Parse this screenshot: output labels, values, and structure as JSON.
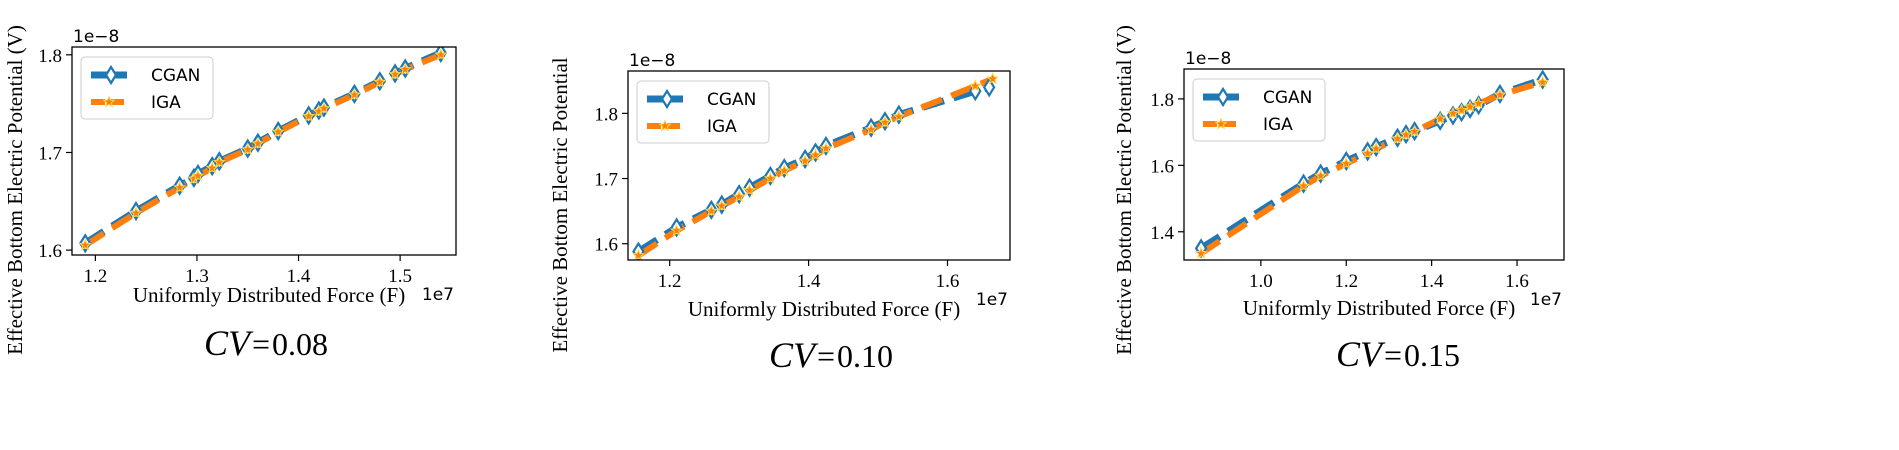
{
  "colors": {
    "cgan": "#1f77b4",
    "iga": "#ff7f0e",
    "iga_marker_edge": "#ffd84a"
  },
  "chart_data": [
    {
      "type": "line",
      "caption": {
        "symbol": "CV",
        "equals": "=",
        "value": "0.08"
      },
      "xlabel": "Uniformly Distributed Force (F)",
      "ylabel": "Effective Bottom Electric Potential (V)",
      "x_offset_label": "1e7",
      "y_offset_label": "1e−8",
      "xlim": [
        1.177,
        1.555
      ],
      "ylim": [
        1.595,
        1.808
      ],
      "xticks": [
        1.2,
        1.3,
        1.4,
        1.5
      ],
      "xtick_labels": [
        "1.2",
        "1.3",
        "1.4",
        "1.5"
      ],
      "yticks": [
        1.6,
        1.7,
        1.8
      ],
      "ytick_labels": [
        "1.6",
        "1.7",
        "1.8"
      ],
      "legend": {
        "position": "upper-left",
        "entries": [
          "CGAN",
          "IGA"
        ]
      },
      "series": [
        {
          "name": "CGAN",
          "marker": "diamond",
          "x": [
            1.19,
            1.24,
            1.283,
            1.297,
            1.301,
            1.315,
            1.322,
            1.35,
            1.36,
            1.38,
            1.41,
            1.42,
            1.425,
            1.455,
            1.48,
            1.495,
            1.505,
            1.54
          ],
          "y": [
            1.607,
            1.64,
            1.666,
            1.674,
            1.678,
            1.686,
            1.691,
            1.704,
            1.71,
            1.722,
            1.738,
            1.743,
            1.746,
            1.76,
            1.773,
            1.781,
            1.786,
            1.802
          ]
        },
        {
          "name": "IGA",
          "marker": "star",
          "x": [
            1.19,
            1.24,
            1.283,
            1.297,
            1.301,
            1.315,
            1.322,
            1.35,
            1.36,
            1.38,
            1.41,
            1.42,
            1.425,
            1.455,
            1.48,
            1.495,
            1.505,
            1.54
          ],
          "y": [
            1.605,
            1.638,
            1.664,
            1.673,
            1.676,
            1.684,
            1.69,
            1.703,
            1.709,
            1.721,
            1.737,
            1.742,
            1.745,
            1.759,
            1.772,
            1.78,
            1.785,
            1.8
          ]
        }
      ]
    },
    {
      "type": "line",
      "caption": {
        "symbol": "CV",
        "equals": "=",
        "value": "0.10"
      },
      "xlabel": "Uniformly Distributed Force (F)",
      "ylabel": "Effective Bottom Electric Potential",
      "x_offset_label": "1e7",
      "y_offset_label": "1e−8",
      "xlim": [
        1.14,
        1.69
      ],
      "ylim": [
        1.575,
        1.865
      ],
      "xticks": [
        1.2,
        1.4,
        1.6
      ],
      "xtick_labels": [
        "1.2",
        "1.4",
        "1.6"
      ],
      "yticks": [
        1.6,
        1.7,
        1.8
      ],
      "ytick_labels": [
        "1.6",
        "1.7",
        "1.8"
      ],
      "legend": {
        "position": "upper-left",
        "entries": [
          "CGAN",
          "IGA"
        ]
      },
      "series": [
        {
          "name": "CGAN",
          "marker": "diamond",
          "x": [
            1.155,
            1.21,
            1.26,
            1.275,
            1.3,
            1.315,
            1.345,
            1.365,
            1.395,
            1.41,
            1.425,
            1.49,
            1.51,
            1.53,
            1.64,
            1.66
          ],
          "y": [
            1.588,
            1.625,
            1.652,
            1.66,
            1.676,
            1.686,
            1.704,
            1.716,
            1.73,
            1.74,
            1.75,
            1.778,
            1.788,
            1.798,
            1.834,
            1.84
          ]
        },
        {
          "name": "IGA",
          "marker": "star",
          "x": [
            1.155,
            1.21,
            1.26,
            1.275,
            1.3,
            1.315,
            1.345,
            1.365,
            1.395,
            1.41,
            1.425,
            1.49,
            1.51,
            1.53,
            1.64,
            1.665
          ],
          "y": [
            1.582,
            1.62,
            1.65,
            1.658,
            1.672,
            1.682,
            1.7,
            1.712,
            1.727,
            1.736,
            1.746,
            1.775,
            1.786,
            1.795,
            1.842,
            1.853
          ]
        }
      ]
    },
    {
      "type": "line",
      "caption": {
        "symbol": "CV",
        "equals": "=",
        "value": "0.15"
      },
      "xlabel": "Uniformly Distributed Force (F)",
      "ylabel": "Effective Bottom Electric Potential (V)",
      "x_offset_label": "1e7",
      "y_offset_label": "1e−8",
      "xlim": [
        0.82,
        1.71
      ],
      "ylim": [
        1.315,
        1.89
      ],
      "xticks": [
        1.0,
        1.2,
        1.4,
        1.6
      ],
      "xtick_labels": [
        "1.0",
        "1.2",
        "1.4",
        "1.6"
      ],
      "yticks": [
        1.4,
        1.6,
        1.8
      ],
      "ytick_labels": [
        "1.4",
        "1.6",
        "1.8"
      ],
      "legend": {
        "position": "upper-left",
        "entries": [
          "CGAN",
          "IGA"
        ]
      },
      "series": [
        {
          "name": "CGAN",
          "marker": "diamond",
          "x": [
            0.86,
            1.1,
            1.14,
            1.2,
            1.25,
            1.27,
            1.32,
            1.34,
            1.36,
            1.42,
            1.45,
            1.47,
            1.49,
            1.51,
            1.56,
            1.66
          ],
          "y": [
            1.35,
            1.545,
            1.575,
            1.613,
            1.642,
            1.655,
            1.683,
            1.694,
            1.703,
            1.734,
            1.75,
            1.76,
            1.77,
            1.781,
            1.815,
            1.858
          ]
        },
        {
          "name": "IGA",
          "marker": "star",
          "x": [
            0.86,
            1.1,
            1.14,
            1.2,
            1.25,
            1.27,
            1.32,
            1.34,
            1.36,
            1.42,
            1.45,
            1.47,
            1.49,
            1.51,
            1.56,
            1.66
          ],
          "y": [
            1.335,
            1.538,
            1.568,
            1.605,
            1.636,
            1.65,
            1.68,
            1.692,
            1.702,
            1.74,
            1.756,
            1.766,
            1.776,
            1.786,
            1.812,
            1.85
          ]
        }
      ]
    }
  ]
}
